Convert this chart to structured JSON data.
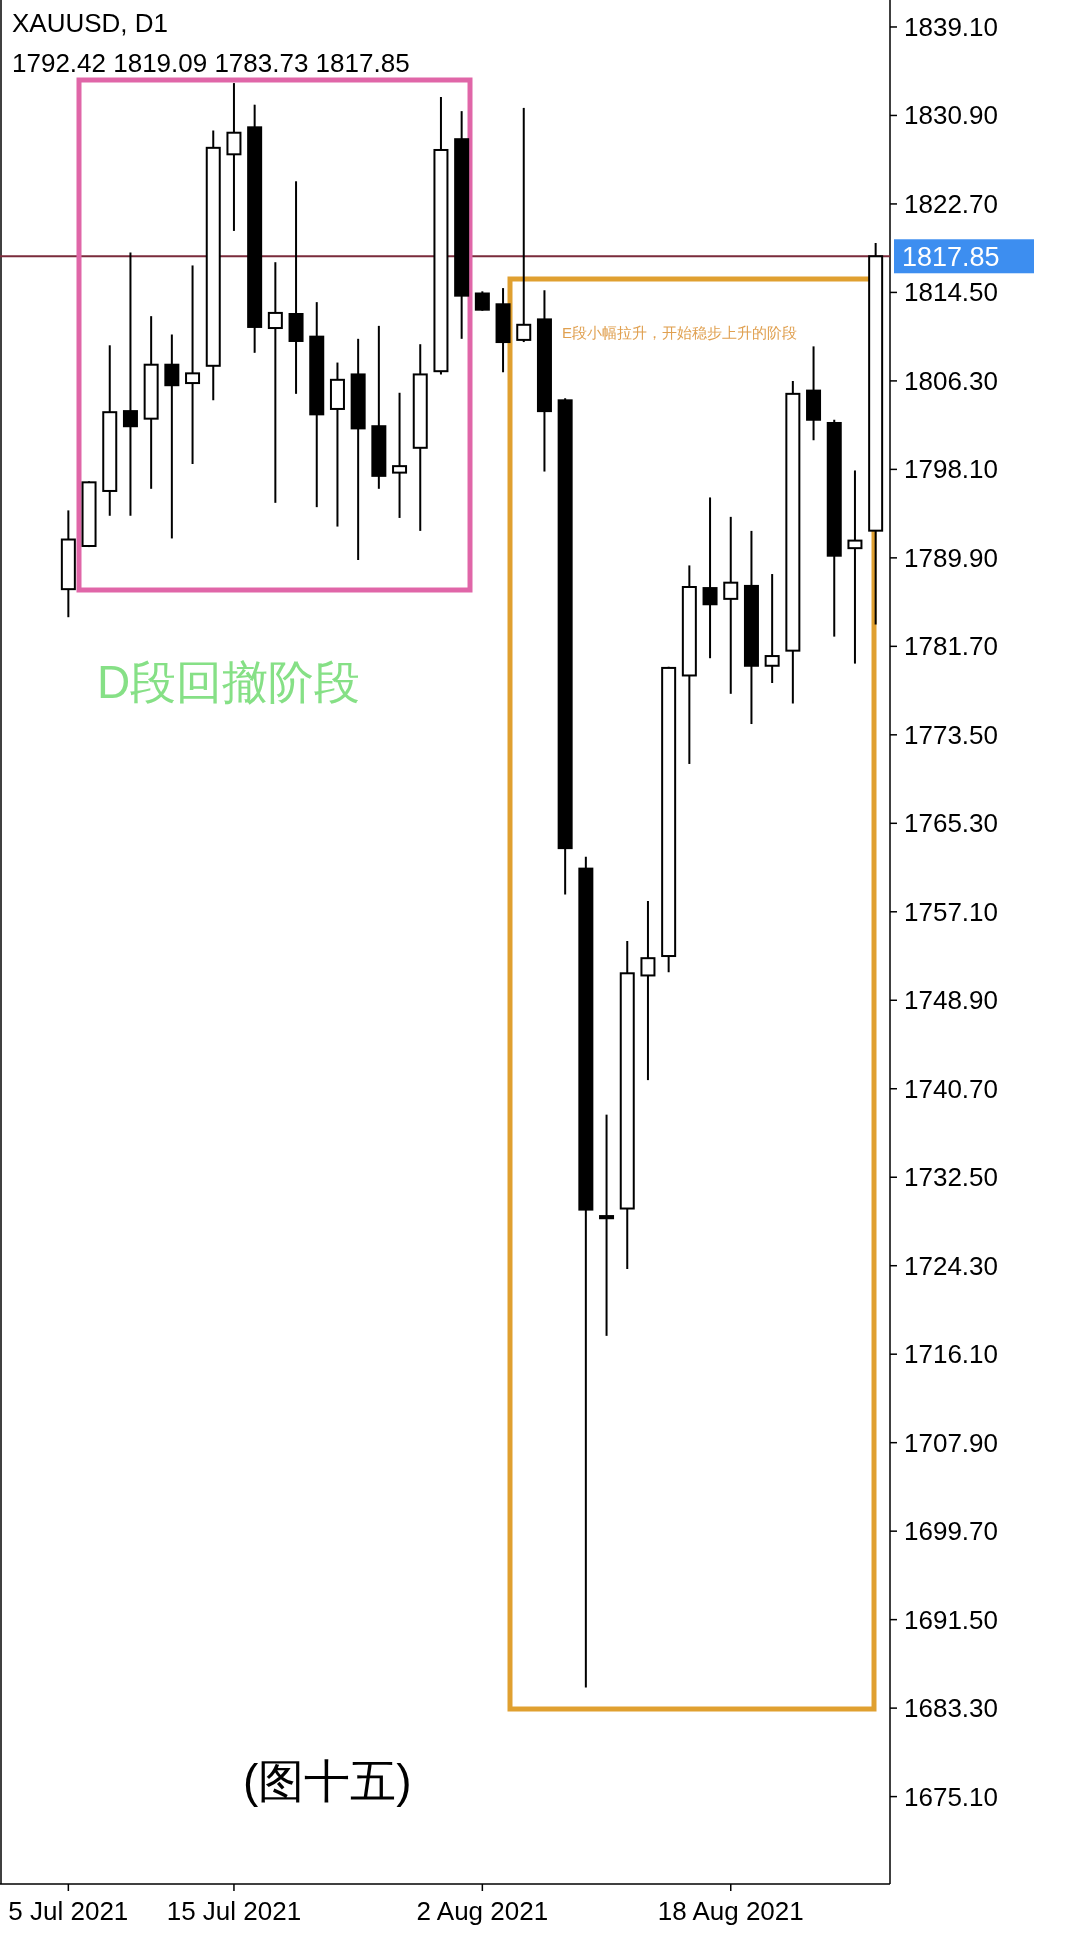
{
  "chart_data": {
    "type": "candlestick",
    "title": "XAUUSD, D1",
    "subtitle": "1792.42 1819.09 1783.73 1817.85",
    "categories": [
      "5 Jul 2021",
      null,
      null,
      null,
      null,
      null,
      null,
      null,
      "15 Jul 2021",
      null,
      null,
      null,
      null,
      null,
      null,
      null,
      null,
      null,
      null,
      null,
      "2 Aug 2021",
      null,
      null,
      null,
      null,
      null,
      null,
      null,
      null,
      null,
      null,
      null,
      "18 Aug 2021",
      null,
      null,
      null,
      null,
      null,
      null,
      null
    ],
    "ohlc": [
      [
        1787.0,
        1794.3,
        1784.4,
        1791.6
      ],
      [
        1791.0,
        1797.0,
        1790.9,
        1796.9
      ],
      [
        1796.1,
        1809.6,
        1793.8,
        1803.4
      ],
      [
        1803.5,
        1818.2,
        1793.8,
        1802.1
      ],
      [
        1802.8,
        1812.3,
        1796.3,
        1807.8
      ],
      [
        1807.8,
        1810.6,
        1791.7,
        1805.9
      ],
      [
        1806.1,
        1817.0,
        1798.6,
        1807.0
      ],
      [
        1807.7,
        1829.5,
        1804.5,
        1827.9
      ],
      [
        1827.3,
        1833.9,
        1820.2,
        1829.3
      ],
      [
        1829.8,
        1831.9,
        1808.9,
        1811.3
      ],
      [
        1811.2,
        1817.3,
        1795.0,
        1812.6
      ],
      [
        1812.5,
        1824.8,
        1805.1,
        1810.0
      ],
      [
        1810.4,
        1813.6,
        1794.6,
        1803.2
      ],
      [
        1803.7,
        1808.0,
        1792.8,
        1806.4
      ],
      [
        1806.9,
        1810.2,
        1789.7,
        1801.9
      ],
      [
        1802.1,
        1811.4,
        1796.3,
        1797.5
      ],
      [
        1797.8,
        1805.2,
        1793.6,
        1798.4
      ],
      [
        1800.1,
        1809.7,
        1792.4,
        1806.9
      ],
      [
        1807.2,
        1832.6,
        1806.9,
        1827.7
      ],
      [
        1828.7,
        1831.3,
        1810.2,
        1814.2
      ],
      [
        1814.4,
        1814.6,
        1812.8,
        1812.9
      ],
      [
        1813.4,
        1814.9,
        1807.1,
        1809.9
      ],
      [
        1810.1,
        1831.6,
        1809.9,
        1811.5
      ],
      [
        1812.0,
        1814.7,
        1797.9,
        1803.5
      ],
      [
        1804.5,
        1804.7,
        1758.7,
        1763.0
      ],
      [
        1761.1,
        1762.2,
        1685.2,
        1729.5
      ],
      [
        1728.9,
        1738.3,
        1717.8,
        1728.7
      ],
      [
        1729.6,
        1754.4,
        1724.0,
        1751.4
      ],
      [
        1751.2,
        1758.1,
        1741.5,
        1752.8
      ],
      [
        1753.0,
        1779.8,
        1751.5,
        1779.7
      ],
      [
        1779.0,
        1789.2,
        1770.8,
        1787.2
      ],
      [
        1787.1,
        1795.5,
        1780.6,
        1785.6
      ],
      [
        1786.1,
        1793.7,
        1777.3,
        1787.6
      ],
      [
        1787.3,
        1792.4,
        1774.5,
        1779.9
      ],
      [
        1779.9,
        1788.4,
        1778.3,
        1780.8
      ],
      [
        1781.3,
        1806.3,
        1776.4,
        1805.1
      ],
      [
        1805.4,
        1809.5,
        1800.8,
        1802.7
      ],
      [
        1802.4,
        1802.7,
        1782.6,
        1790.1
      ],
      [
        1790.8,
        1798.0,
        1780.1,
        1791.5
      ],
      [
        1792.42,
        1819.09,
        1783.73,
        1817.85
      ]
    ],
    "ylim": [
      1667.0,
      1841.6
    ],
    "yticks": [
      {
        "value": 1675.1,
        "label": "1675.10"
      },
      {
        "value": 1683.3,
        "label": "1683.30"
      },
      {
        "value": 1691.5,
        "label": "1691.50"
      },
      {
        "value": 1699.7,
        "label": "1699.70"
      },
      {
        "value": 1707.9,
        "label": "1707.90"
      },
      {
        "value": 1716.1,
        "label": "1716.10"
      },
      {
        "value": 1724.3,
        "label": "1724.30"
      },
      {
        "value": 1732.5,
        "label": "1732.50"
      },
      {
        "value": 1740.7,
        "label": "1740.70"
      },
      {
        "value": 1748.9,
        "label": "1748.90"
      },
      {
        "value": 1757.1,
        "label": "1757.10"
      },
      {
        "value": 1765.3,
        "label": "1765.30"
      },
      {
        "value": 1773.5,
        "label": "1773.50"
      },
      {
        "value": 1781.7,
        "label": "1781.70"
      },
      {
        "value": 1789.9,
        "label": "1789.90"
      },
      {
        "value": 1798.1,
        "label": "1798.10"
      },
      {
        "value": 1806.3,
        "label": "1806.30"
      },
      {
        "value": 1814.5,
        "label": "1814.50"
      },
      {
        "value": 1822.7,
        "label": "1822.70"
      },
      {
        "value": 1830.9,
        "label": "1830.90"
      },
      {
        "value": 1839.1,
        "label": "1839.10"
      }
    ],
    "ref_lines": [
      {
        "axis": "y",
        "value": 1817.85,
        "label": "1817.85",
        "color": "#7a2b3b"
      }
    ],
    "annotations": [
      "D段回撤阶段",
      "E段小幅拉升，开始稳步上升的阶段",
      "(图十五)"
    ]
  }
}
